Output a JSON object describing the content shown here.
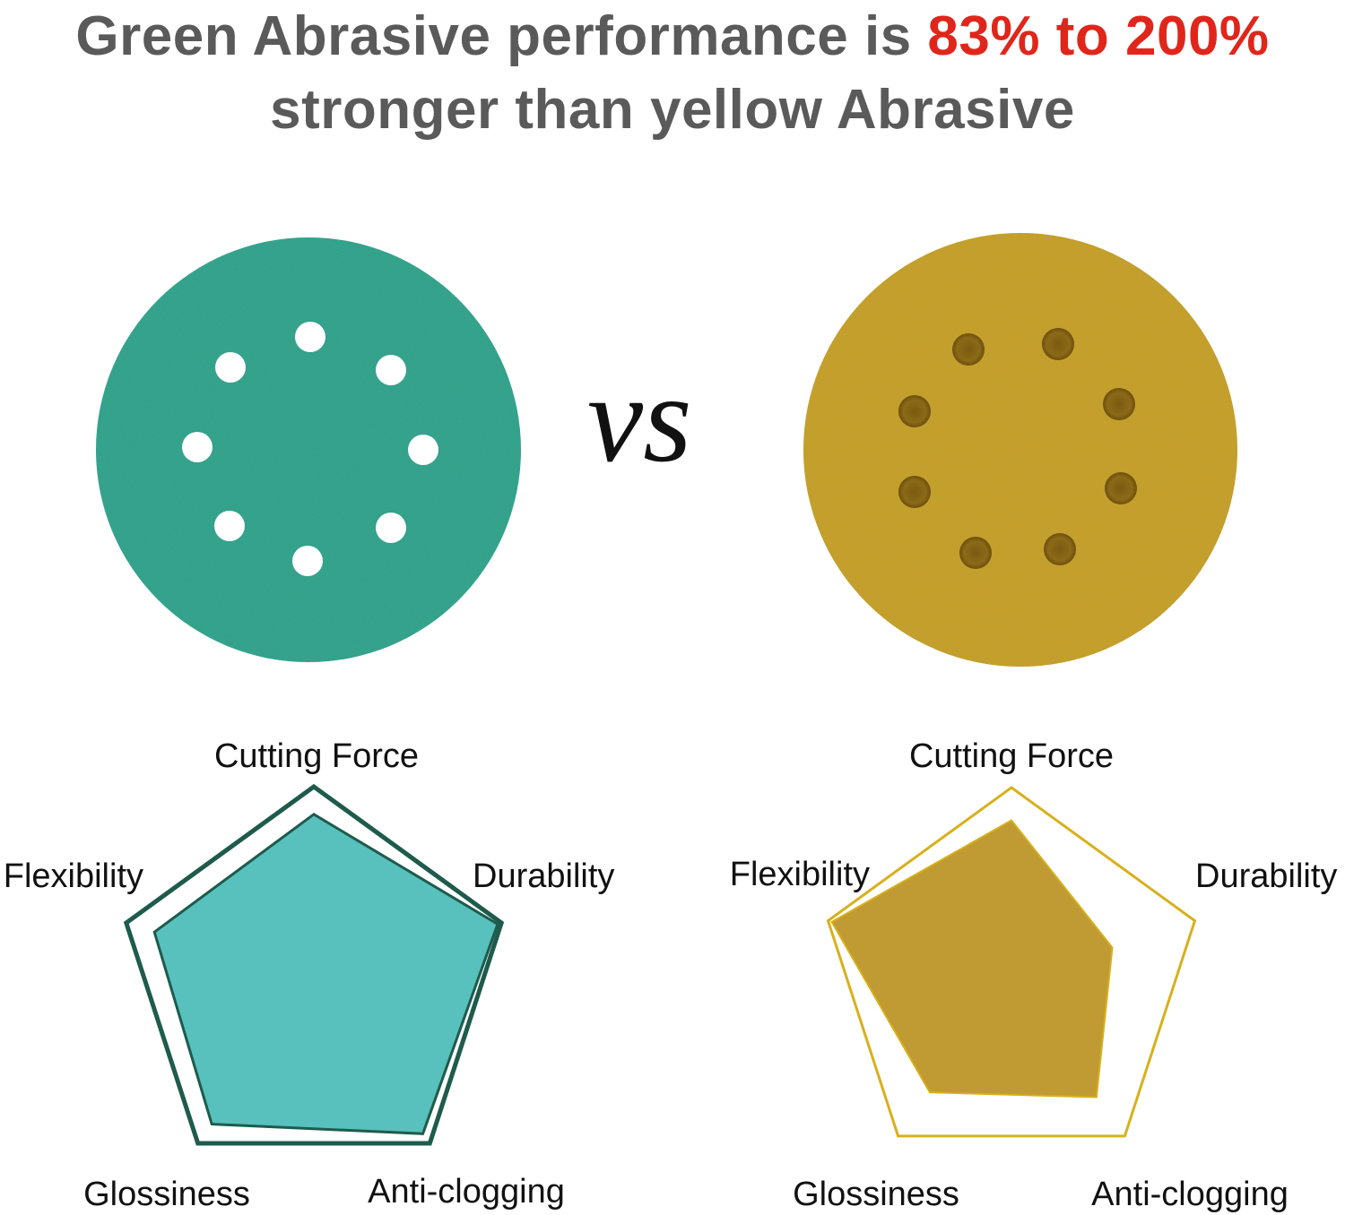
{
  "headline": {
    "line1_prefix": "Green Abrasive performance is ",
    "line1_accent": "83% to 200%",
    "line2": "stronger than yellow Abrasive"
  },
  "vs_label": "VS",
  "colors": {
    "headline_gray": "#5a5a5a",
    "accent_red": "#e0261b",
    "green_disc": "#2a9f86",
    "yellow_disc": "#c9a227",
    "green_fill": "#58c0bd",
    "green_outline": "#1e5b4c",
    "yellow_fill": "#c09a32",
    "yellow_outline": "#d8b01c"
  },
  "discs": [
    {
      "name": "green-sanding-disc",
      "color": "green",
      "holes": 8
    },
    {
      "name": "yellow-sanding-disc",
      "color": "yellow",
      "holes": 8
    }
  ],
  "chart_data": [
    {
      "type": "radar",
      "axes": [
        "Cutting Force",
        "Durability",
        "Anti-clogging",
        "Glossiness",
        "Flexibility"
      ],
      "range": [
        0,
        1
      ],
      "series": [
        {
          "values": [
            1.0,
            1.0,
            1.0,
            1.0,
            1.0
          ]
        },
        {
          "values": [
            0.86,
            0.98,
            0.94,
            0.88,
            0.85
          ]
        }
      ]
    },
    {
      "type": "radar",
      "axes": [
        "Cutting Force",
        "Durability",
        "Anti-clogging",
        "Glossiness",
        "Flexibility"
      ],
      "range": [
        0,
        1
      ],
      "series": [
        {
          "values": [
            1.0,
            1.0,
            1.0,
            1.0,
            1.0
          ]
        },
        {
          "values": [
            0.83,
            0.55,
            0.75,
            0.72,
            0.98
          ]
        }
      ]
    }
  ]
}
